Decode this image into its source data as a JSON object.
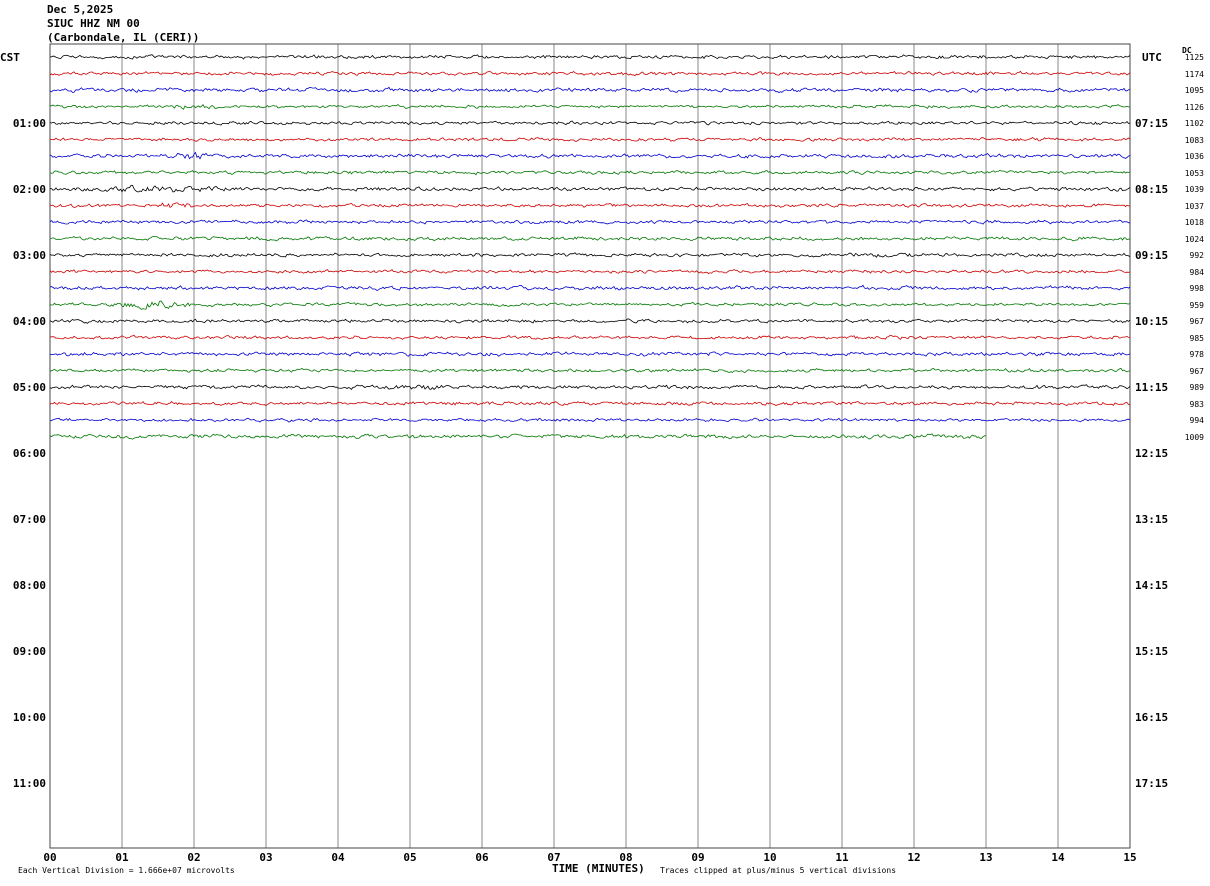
{
  "header": {
    "date": "Dec 5,2025",
    "station": "SIUC HHZ NM 00",
    "location": "(Carbondale, IL (CERI))"
  },
  "axes": {
    "left_corner_label": "CST",
    "right_corner_label": "UTC",
    "dc_column_label": "DC",
    "left_hour_labels": [
      "01:00",
      "02:00",
      "03:00",
      "04:00",
      "05:00",
      "06:00",
      "07:00",
      "08:00",
      "09:00",
      "10:00",
      "11:00"
    ],
    "right_hour_labels": [
      "07:15",
      "08:15",
      "09:15",
      "10:15",
      "11:15",
      "12:15",
      "13:15",
      "14:15",
      "15:15",
      "16:15",
      "17:15"
    ],
    "minute_labels": [
      "00",
      "01",
      "02",
      "03",
      "04",
      "05",
      "06",
      "07",
      "08",
      "09",
      "10",
      "11",
      "12",
      "13",
      "14",
      "15"
    ],
    "x_axis_title": "TIME (MINUTES)"
  },
  "footer": {
    "scale_note": "Each Vertical Division = 1.666e+07 microvolts",
    "clip_note": "Traces clipped at plus/minus 5 vertical divisions"
  },
  "chart_data": {
    "type": "line",
    "title": "SIUC HHZ NM 00 (Carbondale, IL (CERI)) Dec 5,2025 helicorder",
    "xlabel": "TIME (MINUTES)",
    "x_range_minutes": [
      0,
      15
    ],
    "row_duration_minutes": 15,
    "rows_per_hour": 4,
    "trace_colors": {
      "black": "#000000",
      "red": "#cc0000",
      "blue": "#0000cc",
      "green": "#007700"
    },
    "rows": [
      {
        "start_cst": "00:00",
        "color": "black",
        "dc": 1125,
        "end_minute": 15
      },
      {
        "start_cst": "00:15",
        "color": "red",
        "dc": 1174,
        "end_minute": 15
      },
      {
        "start_cst": "00:30",
        "color": "blue",
        "dc": 1095,
        "end_minute": 15
      },
      {
        "start_cst": "00:45",
        "color": "green",
        "dc": 1126,
        "end_minute": 15
      },
      {
        "start_cst": "01:00",
        "color": "black",
        "dc": 1102,
        "end_minute": 15
      },
      {
        "start_cst": "01:15",
        "color": "red",
        "dc": 1083,
        "end_minute": 15
      },
      {
        "start_cst": "01:30",
        "color": "blue",
        "dc": 1036,
        "end_minute": 15
      },
      {
        "start_cst": "01:45",
        "color": "green",
        "dc": 1053,
        "end_minute": 15
      },
      {
        "start_cst": "02:00",
        "color": "black",
        "dc": 1039,
        "end_minute": 15
      },
      {
        "start_cst": "02:15",
        "color": "red",
        "dc": 1037,
        "end_minute": 15
      },
      {
        "start_cst": "02:30",
        "color": "blue",
        "dc": 1018,
        "end_minute": 15
      },
      {
        "start_cst": "02:45",
        "color": "green",
        "dc": 1024,
        "end_minute": 15
      },
      {
        "start_cst": "03:00",
        "color": "black",
        "dc": 992,
        "end_minute": 15
      },
      {
        "start_cst": "03:15",
        "color": "red",
        "dc": 984,
        "end_minute": 15
      },
      {
        "start_cst": "03:30",
        "color": "blue",
        "dc": 998,
        "end_minute": 15
      },
      {
        "start_cst": "03:45",
        "color": "green",
        "dc": 959,
        "end_minute": 15
      },
      {
        "start_cst": "04:00",
        "color": "black",
        "dc": 967,
        "end_minute": 15
      },
      {
        "start_cst": "04:15",
        "color": "red",
        "dc": 985,
        "end_minute": 15
      },
      {
        "start_cst": "04:30",
        "color": "blue",
        "dc": 978,
        "end_minute": 15
      },
      {
        "start_cst": "04:45",
        "color": "green",
        "dc": 967,
        "end_minute": 15
      },
      {
        "start_cst": "05:00",
        "color": "black",
        "dc": 989,
        "end_minute": 15
      },
      {
        "start_cst": "05:15",
        "color": "red",
        "dc": 983,
        "end_minute": 15
      },
      {
        "start_cst": "05:30",
        "color": "blue",
        "dc": 994,
        "end_minute": 15
      },
      {
        "start_cst": "05:45",
        "color": "green",
        "dc": 1009,
        "end_minute": 13
      }
    ],
    "events": [
      {
        "row": 3,
        "minute": 2.0,
        "amplitude": 1.0,
        "width": 0.2
      },
      {
        "row": 6,
        "minute": 2.0,
        "amplitude": 1.3,
        "width": 0.15
      },
      {
        "row": 8,
        "minute": 1.6,
        "amplitude": 0.9,
        "width": 0.7
      },
      {
        "row": 9,
        "minute": 1.7,
        "amplitude": 1.6,
        "width": 0.12
      },
      {
        "row": 12,
        "minute": 11.5,
        "amplitude": 0.8,
        "width": 0.3
      },
      {
        "row": 15,
        "minute": 1.4,
        "amplitude": 2.2,
        "width": 0.35
      },
      {
        "row": 20,
        "minute": 5.1,
        "amplitude": 0.9,
        "width": 0.25
      }
    ],
    "grid": "vertical minute lines on",
    "legend": "none"
  }
}
